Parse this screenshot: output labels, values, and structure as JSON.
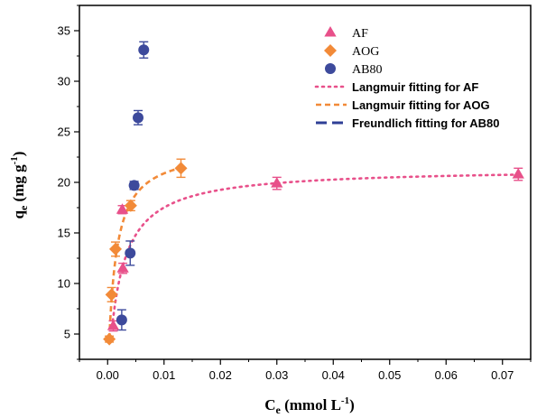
{
  "chart_data": {
    "type": "scatter",
    "xlabel": "C_e (mmol L^-1)",
    "xlabel_main": "C",
    "xlabel_sub": "e",
    "xlabel_unit": " (mmol L",
    "xlabel_sup": "-1",
    "xlabel_close": ")",
    "ylabel": "q_e (mg g^-1)",
    "ylabel_main": "q",
    "ylabel_sub": "e",
    "ylabel_unit": " (mg g",
    "ylabel_sup": "-1",
    "ylabel_close": ")",
    "xlim": [
      -0.005,
      0.075
    ],
    "ylim": [
      2.5,
      37.5
    ],
    "xticks": [
      0.0,
      0.01,
      0.02,
      0.03,
      0.04,
      0.05,
      0.06,
      0.07
    ],
    "xtick_labels": [
      "0.00",
      "0.01",
      "0.02",
      "0.03",
      "0.04",
      "0.05",
      "0.06",
      "0.07"
    ],
    "yticks": [
      5,
      10,
      15,
      20,
      25,
      30,
      35
    ],
    "ytick_labels": [
      "5",
      "10",
      "15",
      "20",
      "25",
      "30",
      "35"
    ],
    "grid": false,
    "legend_position": "top-right",
    "series": [
      {
        "name": "AF",
        "kind": "points",
        "marker": "triangle",
        "color": "#e8508a",
        "points": [
          {
            "x": 0.001,
            "y": 5.8,
            "err": 0.5
          },
          {
            "x": 0.0027,
            "y": 11.5,
            "err": 0.5
          },
          {
            "x": 0.0026,
            "y": 17.3,
            "err": 0.4
          },
          {
            "x": 0.03,
            "y": 19.9,
            "err": 0.6
          },
          {
            "x": 0.0728,
            "y": 20.8,
            "err": 0.6
          }
        ]
      },
      {
        "name": "AOG",
        "kind": "points",
        "marker": "diamond",
        "color": "#f28a38",
        "points": [
          {
            "x": 0.0003,
            "y": 4.5,
            "err": 0.3
          },
          {
            "x": 0.0007,
            "y": 8.9,
            "err": 0.7
          },
          {
            "x": 0.0014,
            "y": 13.4,
            "err": 0.7
          },
          {
            "x": 0.0041,
            "y": 17.7,
            "err": 0.5
          },
          {
            "x": 0.013,
            "y": 21.4,
            "err": 0.9
          }
        ]
      },
      {
        "name": "AB80",
        "kind": "points",
        "marker": "circle",
        "color": "#3d4a9c",
        "points": [
          {
            "x": 0.0025,
            "y": 6.4,
            "err": 1.0
          },
          {
            "x": 0.004,
            "y": 13.0,
            "err": 1.2
          },
          {
            "x": 0.0047,
            "y": 19.7,
            "err": 0.4
          },
          {
            "x": 0.0054,
            "y": 26.4,
            "err": 0.7
          },
          {
            "x": 0.0064,
            "y": 33.1,
            "err": 0.8
          }
        ]
      },
      {
        "name": "Langmuir fitting for AF",
        "kind": "fit",
        "dash": "dot",
        "color": "#e8508a",
        "model": "langmuir",
        "qmax": 21.4,
        "K": 450,
        "x_range": [
          0.0008,
          0.073
        ]
      },
      {
        "name": "Langmuir fitting for AOG",
        "kind": "fit",
        "dash": "short-dash",
        "color": "#f28a38",
        "model": "langmuir",
        "qmax": 23.5,
        "K": 800,
        "x_range": [
          0.0003,
          0.013
        ]
      },
      {
        "name": "Freundlich fitting for AB80",
        "kind": "fit",
        "dash": "long-dash",
        "color": "#2f3f96",
        "model": "freundlich",
        "KF": 12200000000000,
        "n": 0.25,
        "x_range": [
          0.0025,
          0.0066
        ]
      }
    ]
  }
}
